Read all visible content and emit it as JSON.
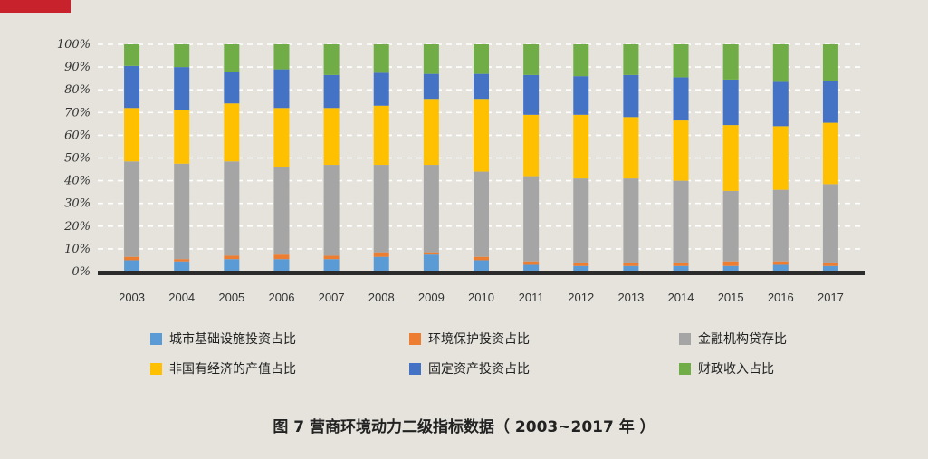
{
  "accent_color": "#c8232c",
  "chart_data": {
    "type": "bar",
    "stacked": true,
    "percent": true,
    "title": "",
    "xlabel": "",
    "ylabel": "",
    "ylim": [
      0,
      100
    ],
    "yticks": [
      "0%",
      "10%",
      "20%",
      "30%",
      "40%",
      "50%",
      "60%",
      "70%",
      "80%",
      "90%",
      "100%"
    ],
    "categories": [
      "2003",
      "2004",
      "2005",
      "2006",
      "2007",
      "2008",
      "2009",
      "2010",
      "2011",
      "2012",
      "2013",
      "2014",
      "2015",
      "2016",
      "2017"
    ],
    "series": [
      {
        "name": "城市基础设施投资占比",
        "color": "#5b9bd5",
        "values": [
          5,
          4.5,
          5.5,
          5.5,
          5.5,
          6.5,
          7.5,
          5,
          3,
          2.5,
          2.5,
          2.5,
          2.5,
          3,
          2.5
        ]
      },
      {
        "name": "环境保护投资占比",
        "color": "#ed7d31",
        "values": [
          1.5,
          1,
          1.5,
          2,
          1.5,
          2,
          1,
          1.5,
          1.5,
          1.5,
          1.5,
          1.5,
          2,
          1.5,
          1.5
        ]
      },
      {
        "name": "金融机构贷存比",
        "color": "#a5a5a5",
        "values": [
          42,
          42,
          41.5,
          38.5,
          40,
          38.5,
          38.5,
          37.5,
          37.5,
          37,
          37,
          36,
          31,
          31.5,
          34.5
        ]
      },
      {
        "name": "非国有经济的产值占比",
        "color": "#ffc000",
        "values": [
          23.5,
          23.5,
          25.5,
          26,
          25,
          26,
          29,
          32,
          27,
          28,
          27,
          26.5,
          29,
          28,
          27
        ]
      },
      {
        "name": "固定资产投资占比",
        "color": "#4472c4",
        "values": [
          18.5,
          19,
          14,
          17,
          14.5,
          14.5,
          11,
          11,
          17.5,
          17,
          18.5,
          19,
          20,
          19.5,
          18.5
        ]
      },
      {
        "name": "财政收入占比",
        "color": "#70ad47",
        "values": [
          9.5,
          10,
          12,
          11,
          13.5,
          12.5,
          13,
          13,
          13.5,
          14,
          13.5,
          14.5,
          15.5,
          16.5,
          16
        ]
      }
    ]
  },
  "legend_items": [
    {
      "label": "城市基础设施投资占比",
      "color": "#5b9bd5"
    },
    {
      "label": "环境保护投资占比",
      "color": "#ed7d31"
    },
    {
      "label": "金融机构贷存比",
      "color": "#a5a5a5"
    },
    {
      "label": "非国有经济的产值占比",
      "color": "#ffc000"
    },
    {
      "label": "固定资产投资占比",
      "color": "#4472c4"
    },
    {
      "label": "财政收入占比",
      "color": "#70ad47"
    }
  ],
  "caption": "图 7  营商环境动力二级指标数据（ 2003~2017 年 ）"
}
